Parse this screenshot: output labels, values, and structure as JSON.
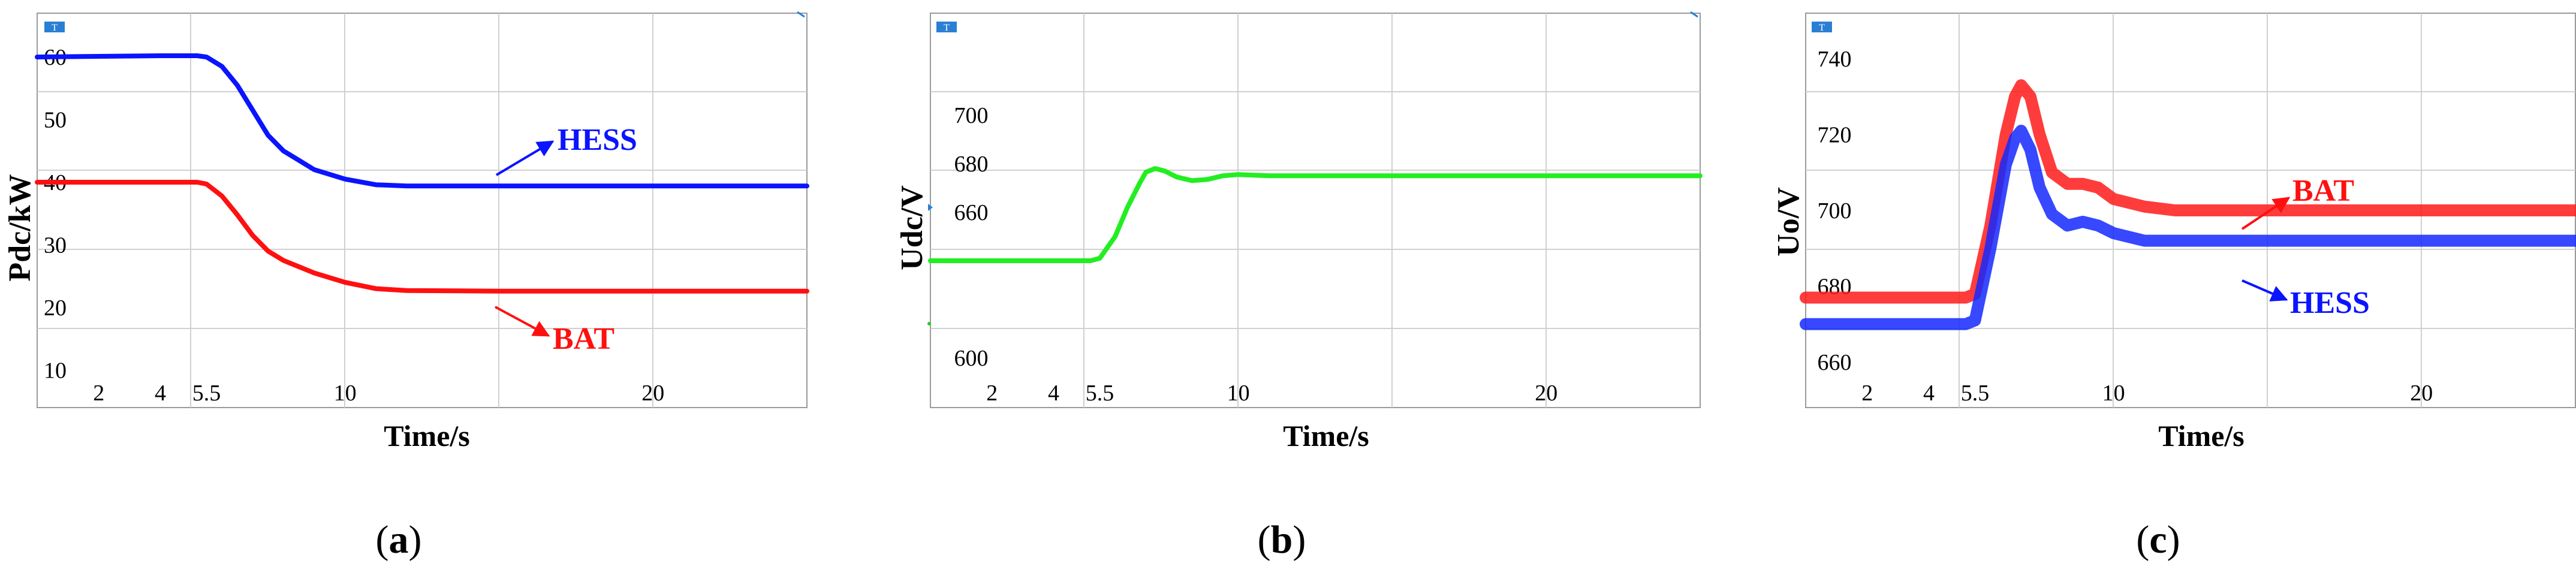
{
  "chart_data": [
    {
      "type": "line",
      "panel_label": "a",
      "ylabel": "Pdc/kW",
      "xlabel": "Time/s",
      "x_ticks": [
        "2",
        "4",
        "5.5",
        "10",
        "20"
      ],
      "y_ticks": [
        "10",
        "20",
        "30",
        "40",
        "50",
        "60"
      ],
      "xlim": [
        0,
        25
      ],
      "ylim": [
        4,
        67
      ],
      "grid": true,
      "series": [
        {
          "name": "HESS",
          "color": "#0a14ff",
          "x": [
            0,
            4,
            5.2,
            5.5,
            6,
            6.5,
            7,
            7.5,
            8,
            8.5,
            9,
            10,
            11,
            12,
            15,
            20,
            25
          ],
          "y": [
            60,
            60.2,
            60.2,
            60,
            58.5,
            55.5,
            51.5,
            47.5,
            45,
            43.5,
            42,
            40.5,
            39.6,
            39.4,
            39.4,
            39.4,
            39.4
          ]
        },
        {
          "name": "BAT",
          "color": "#ff1010",
          "x": [
            0,
            4,
            5.2,
            5.5,
            6,
            6.5,
            7,
            7.5,
            8,
            8.5,
            9,
            10,
            11,
            12,
            15,
            20,
            25
          ],
          "y": [
            40,
            40,
            40,
            39.7,
            37.8,
            34.8,
            31.5,
            29,
            27.5,
            26.5,
            25.5,
            24,
            23,
            22.7,
            22.6,
            22.6,
            22.6
          ]
        }
      ],
      "annotations": [
        {
          "text": "HESS",
          "color": "#0a14ff"
        },
        {
          "text": "BAT",
          "color": "#ff1010"
        }
      ]
    },
    {
      "type": "line",
      "panel_label": "b",
      "ylabel": "Udc/V",
      "xlabel": "Time/s",
      "x_ticks": [
        "2",
        "4",
        "5.5",
        "10",
        "20"
      ],
      "y_ticks": [
        "600",
        "660",
        "680",
        "700"
      ],
      "xlim": [
        0,
        25
      ],
      "grid": true,
      "series": [
        {
          "color": "#22ee22",
          "x": [
            0,
            4,
            5.2,
            5.5,
            6,
            6.4,
            6.8,
            7,
            7.3,
            7.6,
            8,
            8.5,
            9,
            9.5,
            10,
            11,
            12,
            15,
            20,
            25
          ],
          "y": [
            640,
            640,
            640,
            641,
            650,
            662,
            672,
            676.5,
            678,
            677,
            674.5,
            673,
            673.5,
            675,
            675.5,
            675,
            675,
            675,
            675,
            675
          ]
        }
      ]
    },
    {
      "type": "line",
      "panel_label": "c",
      "ylabel": "Uo/V",
      "xlabel": "Time/s",
      "x_ticks": [
        "2",
        "4",
        "5.5",
        "10",
        "20"
      ],
      "y_ticks": [
        "660",
        "680",
        "700",
        "720",
        "740"
      ],
      "xlim": [
        0,
        25
      ],
      "ylim": [
        648,
        752
      ],
      "grid": true,
      "series": [
        {
          "name": "BAT",
          "color": "#ff1a1a",
          "x": [
            0,
            4,
            5.2,
            5.5,
            6,
            6.5,
            6.8,
            7,
            7.3,
            7.6,
            8,
            8.5,
            9,
            9.5,
            10,
            11,
            12,
            15,
            20,
            25
          ],
          "y": [
            677,
            677,
            677,
            678,
            696,
            720,
            730,
            733,
            730,
            720,
            710,
            707,
            707,
            706,
            703,
            701,
            700,
            700,
            700,
            700
          ]
        },
        {
          "name": "HESS",
          "color": "#1428ff",
          "x": [
            0,
            4,
            5.2,
            5.5,
            6,
            6.5,
            6.8,
            7,
            7.3,
            7.6,
            8,
            8.5,
            9,
            9.5,
            10,
            11,
            12,
            15,
            20,
            25
          ],
          "y": [
            670,
            670,
            670,
            671,
            690,
            712,
            719,
            721,
            716,
            706,
            699,
            696,
            697,
            696,
            694,
            692,
            692,
            692,
            692,
            692
          ]
        }
      ],
      "annotations": [
        {
          "text": "BAT",
          "color": "#ff1010"
        },
        {
          "text": "HESS",
          "color": "#0a14ff"
        }
      ]
    }
  ],
  "captions": [
    "a",
    "b",
    "c"
  ]
}
